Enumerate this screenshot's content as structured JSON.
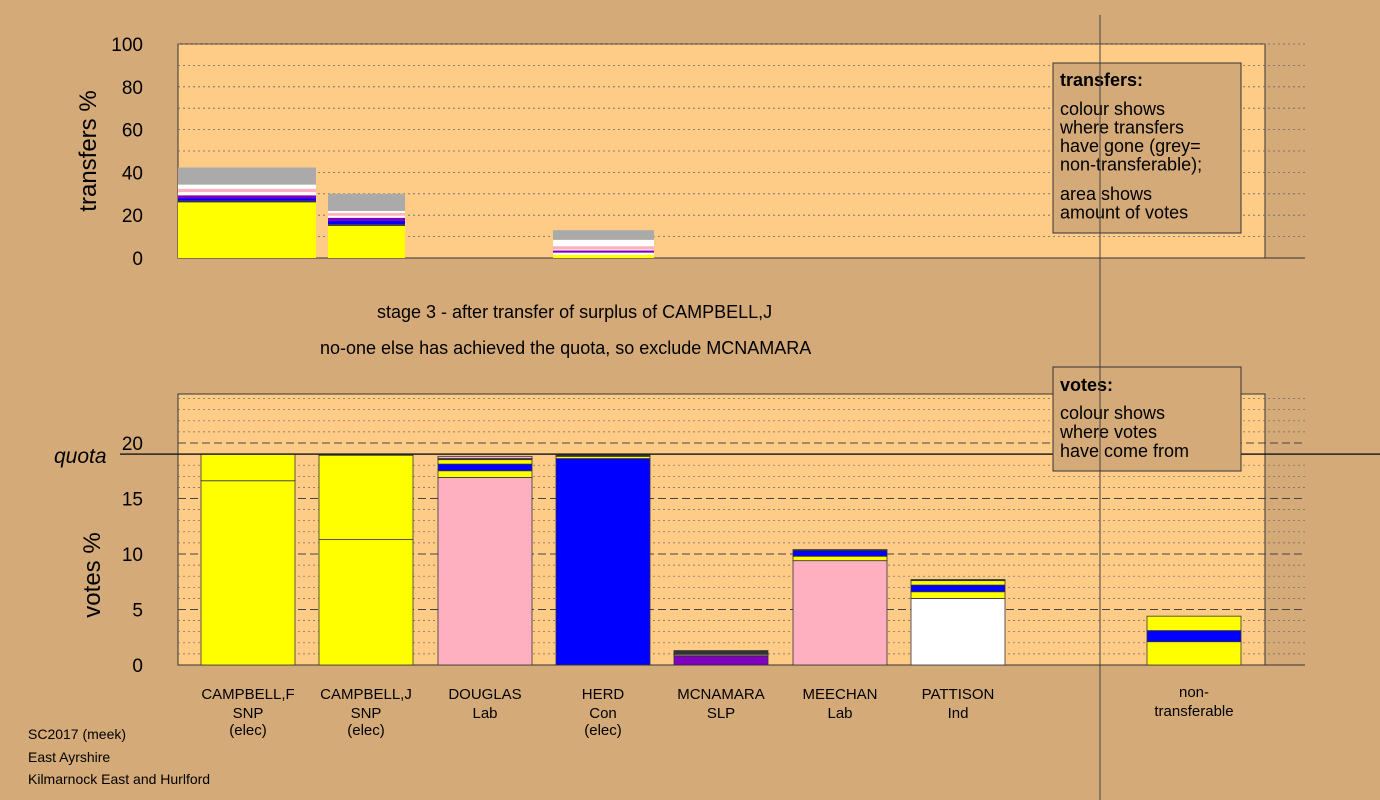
{
  "colors": {
    "background": "#d4aa78",
    "plot_bg": "#ffcc88",
    "SNP": "#ffff00",
    "Lab": "#ffb0c0",
    "Con": "#0000ff",
    "SLP": "#8000c0",
    "Ind": "#ffffff",
    "nontransferable": "#aaaaaa",
    "dark": "#333333"
  },
  "chart_data": [
    {
      "type": "bar",
      "name": "transfers",
      "ylabel": "transfers %",
      "ylim": [
        0,
        100
      ],
      "yticks": [
        0,
        20,
        40,
        60,
        80,
        100
      ],
      "categories": [
        "CAMPBELL,F",
        "CAMPBELL,J",
        "DOUGLAS",
        "HERD",
        "MCNAMARA",
        "MEECHAN",
        "PATTISON"
      ],
      "bars": [
        {
          "source": "CAMPBELL,F",
          "segments": [
            {
              "party": "SNP",
              "value": 26
            },
            {
              "party": "dark",
              "value": 0.8
            },
            {
              "party": "Con",
              "value": 1
            },
            {
              "party": "SLP",
              "value": 1.5
            },
            {
              "party": "Ind",
              "value": 1.5
            },
            {
              "party": "Lab",
              "value": 1.5
            },
            {
              "party": "Ind",
              "value": 2
            },
            {
              "party": "nontransferable",
              "value": 8
            }
          ]
        },
        {
          "source": "CAMPBELL,J",
          "segments": [
            {
              "party": "SNP",
              "value": 15
            },
            {
              "party": "dark",
              "value": 0.8
            },
            {
              "party": "Con",
              "value": 1.5
            },
            {
              "party": "SLP",
              "value": 1.5
            },
            {
              "party": "Ind",
              "value": 1
            },
            {
              "party": "Lab",
              "value": 1.2
            },
            {
              "party": "Ind",
              "value": 1
            },
            {
              "party": "nontransferable",
              "value": 8
            }
          ]
        },
        {
          "source": "HERD",
          "segments": [
            {
              "party": "SNP",
              "value": 1.5
            },
            {
              "party": "Ind",
              "value": 1
            },
            {
              "party": "SLP",
              "value": 1
            },
            {
              "party": "Ind",
              "value": 0.5
            },
            {
              "party": "Lab",
              "value": 1.5
            },
            {
              "party": "Ind",
              "value": 3
            },
            {
              "party": "nontransferable",
              "value": 4.5
            }
          ]
        }
      ],
      "legend": {
        "title": "transfers:",
        "lines1": [
          "colour shows",
          "where transfers",
          "have gone (grey=",
          "non-transferable);"
        ],
        "lines2": [
          "area shows",
          "amount of votes"
        ]
      }
    },
    {
      "type": "bar",
      "name": "votes",
      "ylabel": "votes %",
      "ylim": [
        0,
        24
      ],
      "yticks": [
        0,
        5,
        10,
        15,
        20
      ],
      "quota": 19,
      "quota_label": "quota",
      "categories": [
        {
          "name": "CAMPBELL,F",
          "party": "SNP",
          "note": "(elec)"
        },
        {
          "name": "CAMPBELL,J",
          "party": "SNP",
          "note": "(elec)"
        },
        {
          "name": "DOUGLAS",
          "party": "Lab",
          "note": ""
        },
        {
          "name": "HERD",
          "party": "Con",
          "note": "(elec)"
        },
        {
          "name": "MCNAMARA",
          "party": "SLP",
          "note": ""
        },
        {
          "name": "MEECHAN",
          "party": "Lab",
          "note": ""
        },
        {
          "name": "PATTISON",
          "party": "Ind",
          "note": ""
        }
      ],
      "bars": [
        {
          "candidate": "CAMPBELL,F",
          "segments": [
            {
              "from": "SNP",
              "value": 16.6
            },
            {
              "from": "SNP",
              "value": 2.4
            }
          ]
        },
        {
          "candidate": "CAMPBELL,J",
          "segments": [
            {
              "from": "SNP",
              "value": 11.3
            },
            {
              "from": "SNP",
              "value": 7.6
            },
            {
              "from": "dark",
              "value": 0.1
            }
          ]
        },
        {
          "candidate": "DOUGLAS",
          "segments": [
            {
              "from": "Lab",
              "value": 16.9
            },
            {
              "from": "SNP",
              "value": 0.6
            },
            {
              "from": "Con",
              "value": 0.6
            },
            {
              "from": "SNP",
              "value": 0.4
            },
            {
              "from": "dark",
              "value": 0.1
            },
            {
              "from": "Lab",
              "value": 0.2
            }
          ]
        },
        {
          "candidate": "HERD",
          "segments": [
            {
              "from": "Con",
              "value": 18.6
            },
            {
              "from": "SNP",
              "value": 0.2
            },
            {
              "from": "dark",
              "value": 0.2
            }
          ]
        },
        {
          "candidate": "MCNAMARA",
          "segments": [
            {
              "from": "SLP",
              "value": 0.8
            },
            {
              "from": "Ind",
              "value": 0.1
            },
            {
              "from": "Lab",
              "value": 0.1
            },
            {
              "from": "dark",
              "value": 0.3
            }
          ]
        },
        {
          "candidate": "MEECHAN",
          "segments": [
            {
              "from": "Lab",
              "value": 9.4
            },
            {
              "from": "SNP",
              "value": 0.4
            },
            {
              "from": "Con",
              "value": 0.5
            },
            {
              "from": "dark",
              "value": 0.1
            }
          ]
        },
        {
          "candidate": "PATTISON",
          "segments": [
            {
              "from": "Ind",
              "value": 6.0
            },
            {
              "from": "SNP",
              "value": 0.6
            },
            {
              "from": "Con",
              "value": 0.6
            },
            {
              "from": "SNP",
              "value": 0.4
            },
            {
              "from": "dark",
              "value": 0.1
            }
          ]
        }
      ],
      "nontransferable": {
        "label": [
          "non-",
          "transferable"
        ],
        "segments": [
          {
            "from": "SNP",
            "value": 2.1
          },
          {
            "from": "Con",
            "value": 1.0
          },
          {
            "from": "SNP",
            "value": 1.3
          }
        ]
      },
      "legend": {
        "title": "votes:",
        "lines": [
          "colour shows",
          "where votes",
          "have come from"
        ]
      }
    }
  ],
  "stage": {
    "line1": "stage 3 - after transfer of surplus of CAMPBELL,J",
    "line2": "no-one else has achieved the quota, so exclude MCNAMARA"
  },
  "footer": {
    "line1": "SC2017 (meek)",
    "line2": "East Ayrshire",
    "line3": "Kilmarnock East and Hurlford"
  }
}
